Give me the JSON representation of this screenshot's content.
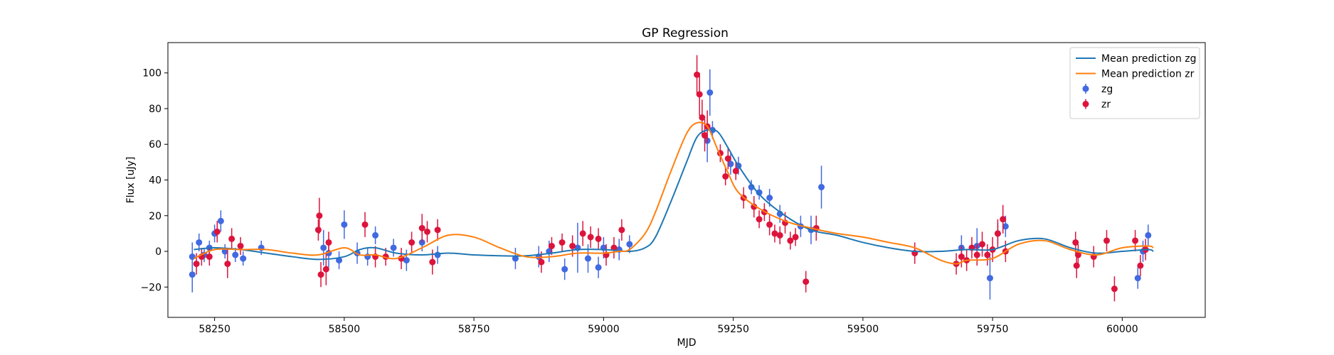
{
  "chart_data": {
    "type": "scatter",
    "title": "GP Regression",
    "xlabel": "MJD",
    "ylabel": "Flux [uJy]",
    "xlim": [
      58160,
      60160
    ],
    "ylim": [
      -37,
      117
    ],
    "xticks": [
      58250,
      58500,
      58750,
      59000,
      59250,
      59500,
      59750,
      60000
    ],
    "yticks": [
      -20,
      0,
      20,
      40,
      60,
      80,
      100
    ],
    "grid": false,
    "legend_position": "top-right",
    "series": [
      {
        "name": "Mean prediction zg",
        "kind": "line",
        "color": "#1f77b4",
        "x": [
          58210,
          58250,
          58300,
          58350,
          58400,
          58450,
          58500,
          58530,
          58560,
          58600,
          58650,
          58700,
          58750,
          58800,
          58850,
          58900,
          58950,
          59000,
          59050,
          59080,
          59100,
          59130,
          59160,
          59180,
          59200,
          59220,
          59240,
          59260,
          59300,
          59350,
          59400,
          59450,
          59500,
          59550,
          59600,
          59650,
          59700,
          59750,
          59800,
          59850,
          59900,
          59950,
          60000,
          60050,
          60060
        ],
        "y": [
          1,
          2,
          1,
          -1,
          -3,
          -4.5,
          -3,
          1,
          2,
          -1,
          -2,
          -1,
          -2,
          -2.5,
          -2.5,
          -1,
          1,
          1,
          0,
          2,
          8,
          28,
          50,
          64,
          68,
          67,
          58,
          48,
          32,
          20,
          12,
          9,
          5,
          2,
          0,
          0,
          1,
          1,
          6,
          7,
          2,
          -1,
          0,
          1,
          0
        ]
      },
      {
        "name": "Mean prediction zr",
        "kind": "line",
        "color": "#ff7f0e",
        "x": [
          58210,
          58250,
          58300,
          58350,
          58400,
          58450,
          58500,
          58530,
          58560,
          58600,
          58650,
          58700,
          58750,
          58800,
          58850,
          58900,
          58950,
          59000,
          59030,
          59050,
          59080,
          59100,
          59130,
          59160,
          59180,
          59200,
          59220,
          59240,
          59260,
          59300,
          59350,
          59400,
          59450,
          59500,
          59550,
          59600,
          59650,
          59680,
          59700,
          59750,
          59800,
          59850,
          59900,
          59950,
          60000,
          60050,
          60060
        ],
        "y": [
          -4,
          1,
          1,
          1,
          -1,
          -2,
          2,
          -2,
          -2,
          -4,
          2,
          9,
          8,
          2,
          -3,
          -3,
          -1,
          -1,
          0,
          1,
          10,
          22,
          45,
          66,
          72,
          70,
          57,
          44,
          33,
          24,
          17,
          13,
          10,
          8,
          5,
          2,
          -5,
          -7,
          -5,
          -4,
          4,
          6,
          1,
          -2,
          2,
          3,
          2
        ]
      },
      {
        "name": "zg",
        "kind": "errorbar",
        "color": "#4169e1",
        "x": [
          58207,
          58207,
          58220,
          58230,
          58240,
          58250,
          58262,
          58270,
          58290,
          58305,
          58340,
          58460,
          58470,
          58490,
          58500,
          58525,
          58545,
          58560,
          58595,
          58620,
          58650,
          58680,
          58830,
          58875,
          58895,
          58925,
          58950,
          58970,
          58990,
          59000,
          59030,
          59050,
          59200,
          59205,
          59210,
          59245,
          59260,
          59285,
          59300,
          59320,
          59340,
          59380,
          59400,
          59420,
          59690,
          59720,
          59745,
          59760,
          59775,
          60030,
          60040,
          60050
        ],
        "y": [
          -13,
          -3,
          5,
          -2,
          2,
          10,
          17,
          0,
          -2,
          -4,
          2,
          2,
          -1,
          -5,
          15,
          -1,
          -3,
          9,
          2,
          -5,
          5,
          -2,
          -4,
          -3,
          0,
          -10,
          2,
          -4,
          -9,
          2,
          1,
          4,
          62,
          89,
          68,
          49,
          48,
          36,
          33,
          30,
          21,
          14,
          12,
          36,
          2,
          3,
          -15,
          10,
          14,
          -15,
          0,
          9
        ],
        "yerr": [
          10,
          8,
          5,
          4,
          4,
          5,
          6,
          4,
          4,
          4,
          4,
          10,
          8,
          5,
          8,
          6,
          5,
          5,
          5,
          6,
          5,
          5,
          6,
          6,
          6,
          6,
          14,
          8,
          6,
          6,
          6,
          5,
          12,
          13,
          5,
          6,
          5,
          4,
          4,
          5,
          5,
          6,
          8,
          12,
          7,
          10,
          12,
          6,
          6,
          6,
          6,
          6
        ]
      },
      {
        "name": "zr",
        "kind": "errorbar",
        "color": "#dc143c",
        "x": [
          58215,
          58225,
          58240,
          58255,
          58275,
          58283,
          58300,
          58450,
          58452,
          58455,
          58465,
          58470,
          58540,
          58560,
          58580,
          58610,
          58630,
          58650,
          58660,
          58670,
          58680,
          58880,
          58900,
          58920,
          58940,
          58960,
          58975,
          58990,
          59005,
          59020,
          59035,
          59180,
          59185,
          59190,
          59195,
          59200,
          59225,
          59235,
          59240,
          59255,
          59270,
          59290,
          59300,
          59310,
          59320,
          59330,
          59340,
          59350,
          59360,
          59370,
          59390,
          59410,
          59600,
          59680,
          59690,
          59700,
          59710,
          59720,
          59730,
          59740,
          59750,
          59760,
          59770,
          59775,
          59910,
          59912,
          59915,
          59945,
          59970,
          59985,
          60025,
          60035,
          60045
        ],
        "y": [
          -7,
          -3,
          -3,
          11,
          -7,
          7,
          3,
          12,
          20,
          -13,
          -10,
          5,
          15,
          -3,
          -3,
          -4,
          5,
          13,
          11,
          -6,
          12,
          -6,
          3,
          5,
          3,
          10,
          8,
          7,
          -2,
          2,
          12,
          99,
          88,
          75,
          65,
          70,
          55,
          42,
          52,
          45,
          30,
          25,
          18,
          22,
          15,
          10,
          9,
          16,
          6,
          8,
          -17,
          13,
          -1,
          -7,
          -3,
          -5,
          2,
          -2,
          4,
          -2,
          1,
          10,
          18,
          0,
          5,
          -8,
          -2,
          -3,
          6,
          -21,
          6,
          -8,
          1
        ],
        "yerr": [
          6,
          5,
          5,
          6,
          8,
          6,
          5,
          6,
          10,
          7,
          9,
          6,
          7,
          6,
          5,
          6,
          6,
          8,
          6,
          7,
          6,
          6,
          5,
          5,
          6,
          7,
          6,
          6,
          6,
          6,
          6,
          11,
          12,
          10,
          9,
          9,
          5,
          5,
          6,
          5,
          6,
          6,
          5,
          5,
          6,
          5,
          5,
          6,
          5,
          5,
          6,
          7,
          6,
          6,
          6,
          6,
          6,
          6,
          7,
          6,
          7,
          8,
          8,
          6,
          6,
          7,
          6,
          6,
          6,
          7,
          6,
          6,
          6
        ]
      }
    ]
  }
}
